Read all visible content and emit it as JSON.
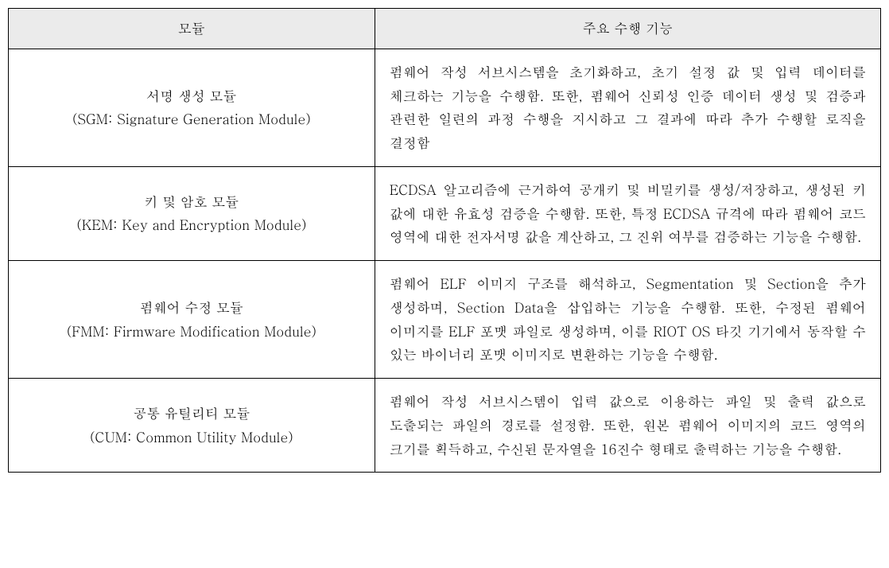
{
  "table": {
    "header": {
      "col_module": "모듈",
      "col_function": "주요 수행 기능"
    },
    "rows": [
      {
        "title": "서명 생성 모듈",
        "subtitle": "(SGM: Signature Generation Module)",
        "description": "펌웨어 작성 서브시스템을 초기화하고, 초기 설정 값 및 입력 데이터를 체크하는 기능을 수행함. 또한, 펌웨어 신뢰성 인증 데이터 생성 및 검증과 관련한 일련의 과정 수행을 지시하고 그 결과에 따라 추가 수행할 로직을 결정함"
      },
      {
        "title": "키 및 암호 모듈",
        "subtitle": "(KEM: Key and Encryption Module)",
        "description": "ECDSA 알고리즘에 근거하여 공개키 및 비밀키를 생성/저장하고, 생성된 키 값에 대한 유효성 검증을 수행함. 또한, 특정 ECDSA 규격에 따라 펌웨어 코드 영역에 대한 전자서명 값을 계산하고, 그 진위 여부를 검증하는 기능을 수행함."
      },
      {
        "title": "펌웨어 수정 모듈",
        "subtitle": "(FMM: Firmware Modification Module)",
        "description": "펌웨어 ELF 이미지 구조를 해석하고, Segmentation 및 Section을 추가 생성하며, Section Data을 삽입하는 기능을 수행함. 또한, 수정된 펌웨어 이미지를 ELF 포맷 파일로 생성하며, 이를 RIOT OS 타깃 기기에서 동작할 수 있는 바이너리 포맷 이미지로 변환하는 기능을 수행함."
      },
      {
        "title": "공통 유틸리티 모듈",
        "subtitle": "(CUM: Common Utility Module)",
        "description": "펌웨어 작성 서브시스템이 입력 값으로 이용하는 파일 및 출력 값으로 도출되는 파일의 경로를 설정함. 또한, 원본 펌웨어 이미지의 코드 영역의 크기를 획득하고, 수신된 문자열을 16진수 형태로 출력하는 기능을 수행함."
      }
    ],
    "styling": {
      "header_bg": "#ebebeb",
      "border_color": "#000000",
      "text_color": "#000000",
      "font_size": 17,
      "line_height": 1.75,
      "col_module_width_pct": 42,
      "col_desc_width_pct": 58,
      "background_color": "#ffffff"
    }
  }
}
